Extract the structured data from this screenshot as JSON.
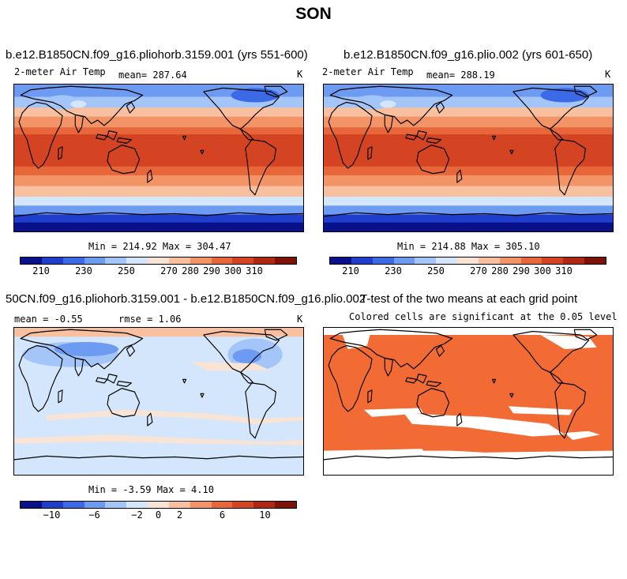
{
  "figure_title": "SON",
  "colors": {
    "palette_13": [
      "#08108a",
      "#1f3ecc",
      "#3c6ae6",
      "#6d9bf2",
      "#a3c5f7",
      "#d4e6fb",
      "#f9e3d4",
      "#f8c09f",
      "#f29466",
      "#e8673a",
      "#d44322",
      "#b02812",
      "#7d1208"
    ],
    "significant": "#f26b35",
    "coast": "#000000"
  },
  "panels": [
    {
      "title": "b.e12.B1850CN.f09_g16.pliohorb.3159.001 (yrs 551-600)",
      "left_label": "2-meter Air Temp",
      "mean_label": "mean= 287.64",
      "unit": "K",
      "stats": "Min = 214.92 Max = 304.47",
      "colorbar_labels": [
        "210",
        "230",
        "250",
        "270",
        "280",
        "290",
        "300",
        "310"
      ]
    },
    {
      "title": "b.e12.B1850CN.f09_g16.plio.002 (yrs 601-650)",
      "left_label": "2-meter Air Temp",
      "mean_label": "mean= 288.19",
      "unit": "K",
      "stats": "Min = 214.88 Max = 305.10",
      "colorbar_labels": [
        "210",
        "230",
        "250",
        "270",
        "280",
        "290",
        "300",
        "310"
      ]
    },
    {
      "title": "50CN.f09_g16.pliohorb.3159.001 - b.e12.B1850CN.f09_g16.plio.002",
      "left_label": "mean =   -0.55",
      "mean_label": "rmse =    1.06",
      "unit": "K",
      "stats": "Min =   -3.59 Max =    4.10",
      "colorbar_labels": [
        "−10",
        "−6",
        "−2",
        "0",
        "2",
        "6",
        "10"
      ]
    },
    {
      "title": "T-test of the two means at each grid point",
      "subtitle": "Colored cells are significant at the 0.05 level"
    }
  ],
  "chart_data": [
    {
      "type": "heatmap",
      "title": "b.e12.B1850CN.f09_g16.pliohorb.3159.001 (yrs 551-600)",
      "variable": "2-meter Air Temp",
      "units": "K",
      "mean": 287.64,
      "min": 214.92,
      "max": 304.47,
      "colorbar_levels": [
        210,
        220,
        230,
        240,
        250,
        260,
        270,
        275,
        280,
        285,
        290,
        295,
        300,
        305,
        310
      ],
      "colorbar_tick_labels": [
        210,
        230,
        250,
        270,
        280,
        290,
        300,
        310
      ]
    },
    {
      "type": "heatmap",
      "title": "b.e12.B1850CN.f09_g16.plio.002 (yrs 601-650)",
      "variable": "2-meter Air Temp",
      "units": "K",
      "mean": 288.19,
      "min": 214.88,
      "max": 305.1,
      "colorbar_levels": [
        210,
        220,
        230,
        240,
        250,
        260,
        270,
        275,
        280,
        285,
        290,
        295,
        300,
        305,
        310
      ],
      "colorbar_tick_labels": [
        210,
        230,
        250,
        270,
        280,
        290,
        300,
        310
      ]
    },
    {
      "type": "heatmap",
      "title": "50CN.f09_g16.pliohorb.3159.001 - b.e12.B1850CN.f09_g16.plio.002",
      "units": "K",
      "mean": -0.55,
      "rmse": 1.06,
      "min": -3.59,
      "max": 4.1,
      "colorbar_tick_labels": [
        -10,
        -6,
        -2,
        0,
        2,
        6,
        10
      ]
    },
    {
      "type": "heatmap",
      "title": "T-test of the two means at each grid point",
      "subtitle": "Colored cells are significant at the 0.05 level",
      "significance_level": 0.05
    }
  ]
}
